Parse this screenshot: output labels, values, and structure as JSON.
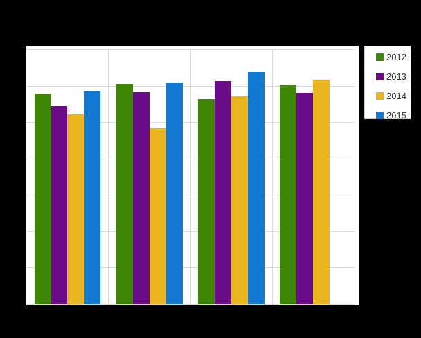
{
  "chart_data": {
    "type": "bar",
    "grouped": true,
    "title": "",
    "categories": [
      "",
      "",
      "",
      ""
    ],
    "x_axis_labels_visible": false,
    "y_axis_labels_visible": false,
    "ylim": [
      0,
      7
    ],
    "y_gridline_step": 1,
    "grid": true,
    "legend_position": "top-right",
    "series": [
      {
        "name": "2012",
        "color": "#3d8705",
        "values": [
          5.76,
          6.03,
          5.63,
          6.01
        ]
      },
      {
        "name": "2013",
        "color": "#6a0b87",
        "values": [
          5.44,
          5.82,
          6.13,
          5.8
        ]
      },
      {
        "name": "2014",
        "color": "#eab41f",
        "values": [
          5.21,
          4.83,
          5.71,
          6.16
        ]
      },
      {
        "name": "2015",
        "color": "#1179d1",
        "values": [
          5.84,
          6.07,
          6.37,
          null
        ]
      }
    ],
    "colors": {
      "page_background": "#000000",
      "plot_background": "#ffffff",
      "gridline": "#d9d9d9",
      "legend_border": "#cccccc",
      "legend_text": "#333333"
    }
  }
}
